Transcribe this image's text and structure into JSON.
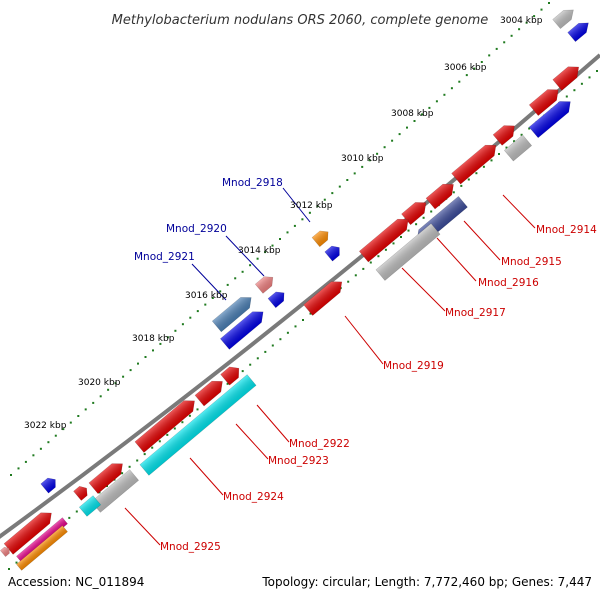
{
  "title": "Methylobacterium nodulans ORS 2060, complete genome",
  "footer": {
    "accession": "Accession: NC_011894",
    "summary": "Topology: circular; Length: 7,772,460 bp; Genes: 7,447"
  },
  "colors": {
    "backbone": "#7a7a7a",
    "tick": "#1f7a1f",
    "red": "#e60000",
    "blue": "#0000e6",
    "grey": "#bdbdbd",
    "steel": "#4a7fb5",
    "pink": "#f08080",
    "orange": "#ff8c00",
    "cyan": "#00e5ee",
    "navy": "#3b4b9a",
    "magenta": "#e6008a",
    "label_red": "#cc0000",
    "label_blue": "#000099"
  },
  "kbp_labels": [
    "3004 kbp",
    "3006 kbp",
    "3008 kbp",
    "3010 kbp",
    "3012 kbp",
    "3014 kbp",
    "3016 kbp",
    "3018 kbp",
    "3020 kbp",
    "3022 kbp"
  ],
  "gene_labels_outer": [
    "Mnod_2918",
    "Mnod_2920",
    "Mnod_2921"
  ],
  "gene_labels_inner": [
    "Mnod_2914",
    "Mnod_2915",
    "Mnod_2916",
    "Mnod_2917",
    "Mnod_2919",
    "Mnod_2922",
    "Mnod_2923",
    "Mnod_2924",
    "Mnod_2925"
  ]
}
